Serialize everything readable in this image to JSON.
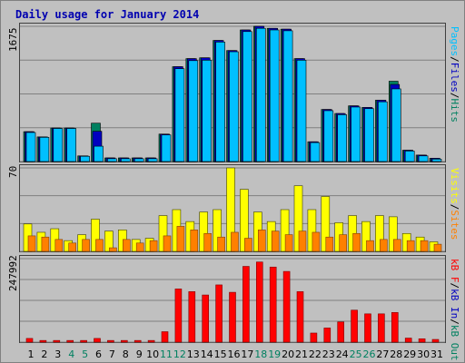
{
  "title": "Daily usage for January 2014",
  "panels": {
    "top": {
      "max_label": "1675",
      "legend": [
        {
          "text": "Pages",
          "color": "#00c0ff"
        },
        {
          "text": "/",
          "color": "#000000"
        },
        {
          "text": "Files",
          "color": "#0000c0"
        },
        {
          "text": "/",
          "color": "#000000"
        },
        {
          "text": "Hits",
          "color": "#008060"
        }
      ]
    },
    "middle": {
      "max_label": "70",
      "legend": [
        {
          "text": "Visits",
          "color": "#ffff00"
        },
        {
          "text": "/",
          "color": "#000000"
        },
        {
          "text": "Sites",
          "color": "#ff8000"
        }
      ]
    },
    "bottom": {
      "max_label": "247992",
      "legend": [
        {
          "text": "kB F",
          "color": "#ff0000"
        },
        {
          "text": "/",
          "color": "#000000"
        },
        {
          "text": "kB In",
          "color": "#0000c0"
        },
        {
          "text": "/",
          "color": "#000000"
        },
        {
          "text": "kB Out",
          "color": "#008060"
        }
      ]
    }
  },
  "chart_data": {
    "type": "bar",
    "title": "Daily usage for January 2014",
    "categories": [
      "1",
      "2",
      "3",
      "4",
      "5",
      "6",
      "7",
      "8",
      "9",
      "10",
      "11",
      "12",
      "13",
      "14",
      "15",
      "16",
      "17",
      "18",
      "19",
      "20",
      "21",
      "22",
      "23",
      "24",
      "25",
      "26",
      "27",
      "28",
      "29",
      "30",
      "31"
    ],
    "weekend_days": [
      "4",
      "5",
      "11",
      "12",
      "18",
      "19",
      "25",
      "26"
    ],
    "weekend_label_color": "#008060",
    "weekday_label_color": "#000000",
    "panels": [
      {
        "name": "top",
        "ylim": [
          0,
          1675
        ],
        "series": [
          {
            "name": "Hits",
            "color": "#008060",
            "values": [
              370,
              305,
              415,
              415,
              70,
              475,
              45,
              45,
              45,
              45,
              340,
              1175,
              1275,
              1285,
              1500,
              1375,
              1630,
              1675,
              1650,
              1640,
              1275,
              245,
              645,
              595,
              690,
              670,
              760,
              995,
              140,
              80,
              40
            ]
          },
          {
            "name": "Files",
            "color": "#0000c0",
            "values": [
              370,
              305,
              415,
              415,
              70,
              375,
              45,
              45,
              45,
              45,
              340,
              1175,
              1275,
              1285,
              1500,
              1375,
              1630,
              1675,
              1650,
              1640,
              1275,
              245,
              645,
              595,
              690,
              670,
              760,
              955,
              140,
              80,
              40
            ]
          },
          {
            "name": "Pages",
            "color": "#00c0ff",
            "values": [
              360,
              300,
              410,
              410,
              65,
              190,
              35,
              35,
              35,
              35,
              330,
              1150,
              1250,
              1255,
              1480,
              1360,
              1610,
              1650,
              1630,
              1620,
              1255,
              235,
              630,
              580,
              675,
              655,
              740,
              900,
              130,
              70,
              30
            ]
          }
        ]
      },
      {
        "name": "middle",
        "ylim": [
          0,
          70
        ],
        "series": [
          {
            "name": "Visits",
            "color": "#ffff00",
            "values": [
              23,
              16,
              19,
              9,
              14,
              27,
              17,
              18,
              10,
              11,
              30,
              35,
              25,
              33,
              35,
              70,
              52,
              33,
              25,
              35,
              55,
              35,
              46,
              24,
              30,
              25,
              30,
              29,
              15,
              12,
              8
            ]
          },
          {
            "name": "Sites",
            "color": "#ff8000",
            "values": [
              13,
              12,
              10,
              7,
              10,
              10,
              3,
              10,
              7,
              9,
              13,
              21,
              18,
              15,
              12,
              16,
              11,
              18,
              17,
              14,
              17,
              16,
              12,
              14,
              15,
              9,
              10,
              10,
              9,
              9,
              6
            ]
          }
        ]
      },
      {
        "name": "bottom",
        "ylim": [
          0,
          247992
        ],
        "series": [
          {
            "name": "kB F",
            "color": "#ff0000",
            "values": [
              11000,
              5000,
              5000,
              5000,
              5000,
              11000,
              5000,
              5000,
              5000,
              5000,
              31000,
              158000,
              150000,
              140000,
              170000,
              148000,
              225000,
              238000,
              223000,
              210000,
              150000,
              27000,
              42000,
              60000,
              95000,
              84000,
              84000,
              88000,
              12000,
              10000,
              8000
            ]
          }
        ]
      }
    ]
  }
}
